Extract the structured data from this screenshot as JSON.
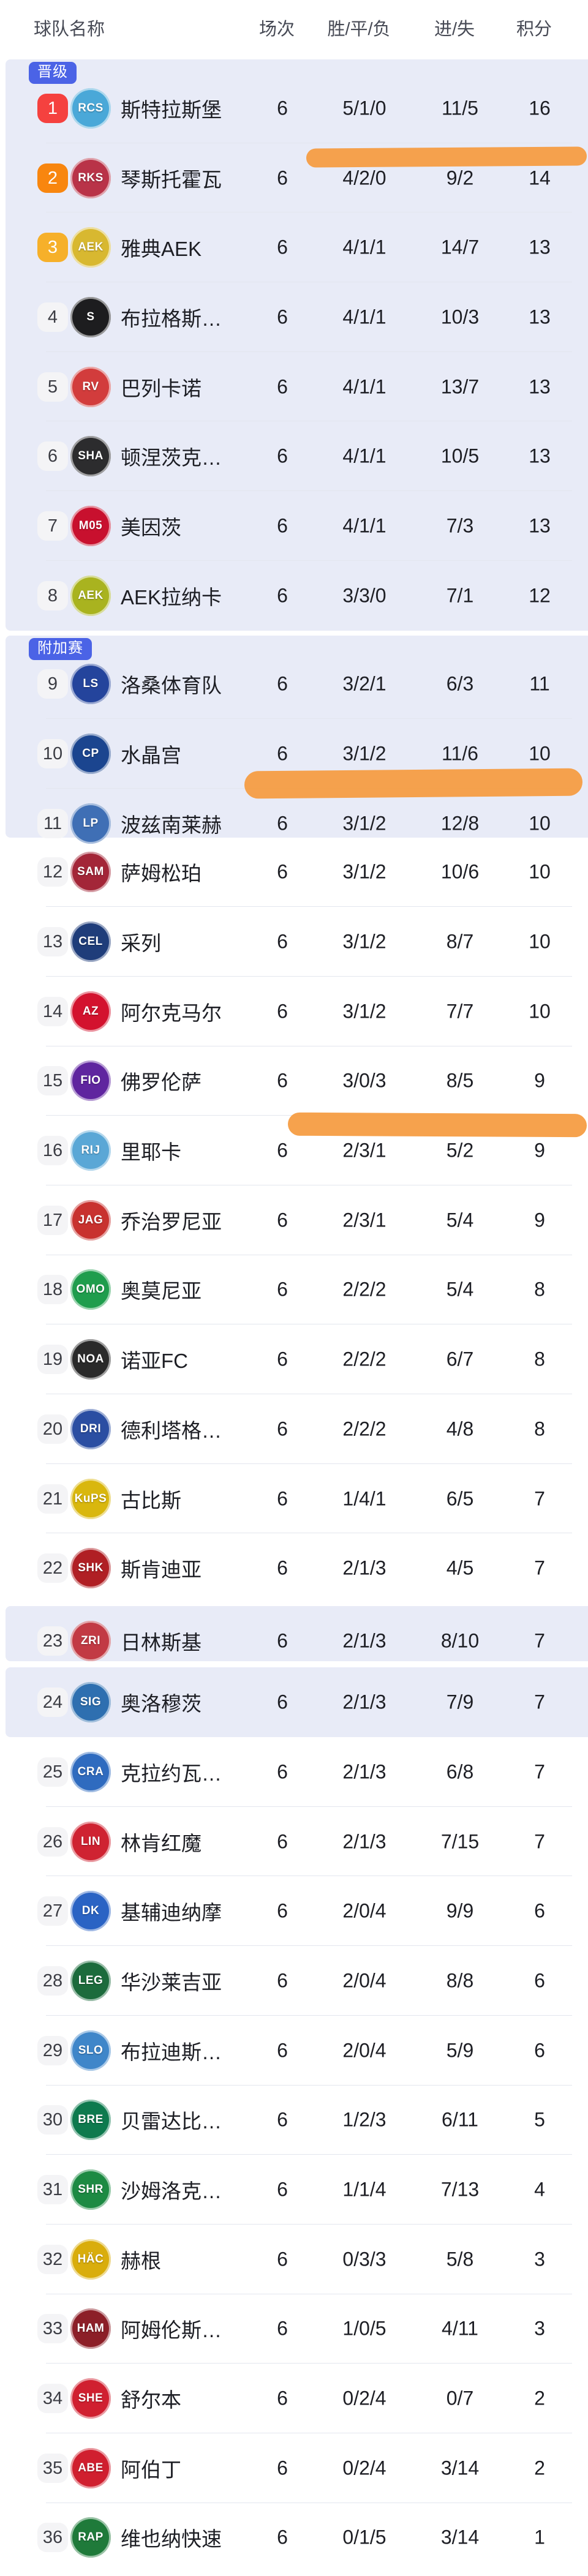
{
  "header": {
    "team": "球队名称",
    "played": "场次",
    "wdl": "胜/平/负",
    "goals": "进/失",
    "points": "积分"
  },
  "sections": [
    {
      "badge": "晋级"
    },
    {
      "badge": "附加赛"
    }
  ],
  "colors": {
    "section_bg": "#e8ebf7",
    "badge_blue": "#4b63e6",
    "rank1": "#f5413f",
    "rank2": "#f8860f",
    "rank3": "#f6b02a",
    "rank_default_bg": "#f4f4f6",
    "marker": "#f59b40"
  },
  "rows": [
    {
      "rank": "1",
      "name": "斯特拉斯堡",
      "crest_label": "RCS",
      "crest_color": "#4aa8d8",
      "played": "6",
      "wdl": "5/1/0",
      "goals": "11/5",
      "points": "16"
    },
    {
      "rank": "2",
      "name": "琴斯托霍瓦",
      "crest_label": "RKS",
      "crest_color": "#b93348",
      "played": "6",
      "wdl": "4/2/0",
      "goals": "9/2",
      "points": "14"
    },
    {
      "rank": "3",
      "name": "雅典AEK",
      "crest_label": "AEK",
      "crest_color": "#d8b830",
      "played": "6",
      "wdl": "4/1/1",
      "goals": "14/7",
      "points": "13"
    },
    {
      "rank": "4",
      "name": "布拉格斯…",
      "crest_label": "S",
      "crest_color": "#1d1d1f",
      "played": "6",
      "wdl": "4/1/1",
      "goals": "10/3",
      "points": "13"
    },
    {
      "rank": "5",
      "name": "巴列卡诺",
      "crest_label": "RV",
      "crest_color": "#d23c3c",
      "played": "6",
      "wdl": "4/1/1",
      "goals": "13/7",
      "points": "13"
    },
    {
      "rank": "6",
      "name": "顿涅茨克…",
      "crest_label": "SHA",
      "crest_color": "#2c2c2e",
      "played": "6",
      "wdl": "4/1/1",
      "goals": "10/5",
      "points": "13"
    },
    {
      "rank": "7",
      "name": "美因茨",
      "crest_label": "M05",
      "crest_color": "#c8102e",
      "played": "6",
      "wdl": "4/1/1",
      "goals": "7/3",
      "points": "13"
    },
    {
      "rank": "8",
      "name": "AEK拉纳卡",
      "crest_label": "AEK",
      "crest_color": "#a9b31f",
      "played": "6",
      "wdl": "3/3/0",
      "goals": "7/1",
      "points": "12"
    },
    {
      "rank": "9",
      "name": "洛桑体育队",
      "crest_label": "LS",
      "crest_color": "#24449c",
      "played": "6",
      "wdl": "3/2/1",
      "goals": "6/3",
      "points": "11"
    },
    {
      "rank": "10",
      "name": "水晶宫",
      "crest_label": "CP",
      "crest_color": "#1b458f",
      "played": "6",
      "wdl": "3/1/2",
      "goals": "11/6",
      "points": "10"
    },
    {
      "rank": "11",
      "name": "波兹南莱赫",
      "crest_label": "LP",
      "crest_color": "#3f6fb5",
      "played": "6",
      "wdl": "3/1/2",
      "goals": "12/8",
      "points": "10"
    },
    {
      "rank": "12",
      "name": "萨姆松珀",
      "crest_label": "SAM",
      "crest_color": "#a32638",
      "played": "6",
      "wdl": "3/1/2",
      "goals": "10/6",
      "points": "10"
    },
    {
      "rank": "13",
      "name": "采列",
      "crest_label": "CEL",
      "crest_color": "#1f3d7a",
      "played": "6",
      "wdl": "3/1/2",
      "goals": "8/7",
      "points": "10"
    },
    {
      "rank": "14",
      "name": "阿尔克马尔",
      "crest_label": "AZ",
      "crest_color": "#d3122e",
      "played": "6",
      "wdl": "3/1/2",
      "goals": "7/7",
      "points": "10"
    },
    {
      "rank": "15",
      "name": "佛罗伦萨",
      "crest_label": "FIO",
      "crest_color": "#5f259f",
      "played": "6",
      "wdl": "3/0/3",
      "goals": "8/5",
      "points": "9"
    },
    {
      "rank": "16",
      "name": "里耶卡",
      "crest_label": "RIJ",
      "crest_color": "#5aa7d6",
      "played": "6",
      "wdl": "2/3/1",
      "goals": "5/2",
      "points": "9"
    },
    {
      "rank": "17",
      "name": "乔治罗尼亚",
      "crest_label": "JAG",
      "crest_color": "#c8322f",
      "played": "6",
      "wdl": "2/3/1",
      "goals": "5/4",
      "points": "9"
    },
    {
      "rank": "18",
      "name": "奥莫尼亚",
      "crest_label": "OMO",
      "crest_color": "#1f9d4d",
      "played": "6",
      "wdl": "2/2/2",
      "goals": "5/4",
      "points": "8"
    },
    {
      "rank": "19",
      "name": "诺亚FC",
      "crest_label": "NOA",
      "crest_color": "#2a2a2a",
      "played": "6",
      "wdl": "2/2/2",
      "goals": "6/7",
      "points": "8"
    },
    {
      "rank": "20",
      "name": "德利塔格…",
      "crest_label": "DRI",
      "crest_color": "#2b4ea2",
      "played": "6",
      "wdl": "2/2/2",
      "goals": "4/8",
      "points": "8"
    },
    {
      "rank": "21",
      "name": "古比斯",
      "crest_label": "KuPS",
      "crest_color": "#d9b70e",
      "played": "6",
      "wdl": "1/4/1",
      "goals": "6/5",
      "points": "7"
    },
    {
      "rank": "22",
      "name": "斯肯迪亚",
      "crest_label": "SHK",
      "crest_color": "#b01f24",
      "played": "6",
      "wdl": "2/1/3",
      "goals": "4/5",
      "points": "7"
    },
    {
      "rank": "23",
      "name": "日林斯基",
      "crest_label": "ZRI",
      "crest_color": "#c23a44",
      "played": "6",
      "wdl": "2/1/3",
      "goals": "8/10",
      "points": "7"
    },
    {
      "rank": "24",
      "name": "奥洛穆茨",
      "crest_label": "SIG",
      "crest_color": "#2e6fb0",
      "played": "6",
      "wdl": "2/1/3",
      "goals": "7/9",
      "points": "7"
    },
    {
      "rank": "25",
      "name": "克拉约瓦…",
      "crest_label": "CRA",
      "crest_color": "#2f6bbf",
      "played": "6",
      "wdl": "2/1/3",
      "goals": "6/8",
      "points": "7"
    },
    {
      "rank": "26",
      "name": "林肯红魔",
      "crest_label": "LIN",
      "crest_color": "#cf2332",
      "played": "6",
      "wdl": "2/1/3",
      "goals": "7/15",
      "points": "7"
    },
    {
      "rank": "27",
      "name": "基辅迪纳摩",
      "crest_label": "DK",
      "crest_color": "#2a63c4",
      "played": "6",
      "wdl": "2/0/4",
      "goals": "9/9",
      "points": "6"
    },
    {
      "rank": "28",
      "name": "华沙莱吉亚",
      "crest_label": "LEG",
      "crest_color": "#1c6b3c",
      "played": "6",
      "wdl": "2/0/4",
      "goals": "8/8",
      "points": "6"
    },
    {
      "rank": "29",
      "name": "布拉迪斯…",
      "crest_label": "SLO",
      "crest_color": "#3f86c9",
      "played": "6",
      "wdl": "2/0/4",
      "goals": "5/9",
      "points": "6"
    },
    {
      "rank": "30",
      "name": "贝雷达比…",
      "crest_label": "BRE",
      "crest_color": "#0e7a4e",
      "played": "6",
      "wdl": "1/2/3",
      "goals": "6/11",
      "points": "5"
    },
    {
      "rank": "31",
      "name": "沙姆洛克…",
      "crest_label": "SHR",
      "crest_color": "#1d8a43",
      "played": "6",
      "wdl": "1/1/4",
      "goals": "7/13",
      "points": "4"
    },
    {
      "rank": "32",
      "name": "赫根",
      "crest_label": "HÄC",
      "crest_color": "#d9ad0c",
      "played": "6",
      "wdl": "0/3/3",
      "goals": "5/8",
      "points": "3"
    },
    {
      "rank": "33",
      "name": "阿姆伦斯…",
      "crest_label": "HAM",
      "crest_color": "#8c1f28",
      "played": "6",
      "wdl": "1/0/5",
      "goals": "4/11",
      "points": "3"
    },
    {
      "rank": "34",
      "name": "舒尔本",
      "crest_label": "SHE",
      "crest_color": "#d02030",
      "played": "6",
      "wdl": "0/2/4",
      "goals": "0/7",
      "points": "2"
    },
    {
      "rank": "35",
      "name": "阿伯丁",
      "crest_label": "ABE",
      "crest_color": "#d01f2f",
      "played": "6",
      "wdl": "0/2/4",
      "goals": "3/14",
      "points": "2"
    },
    {
      "rank": "36",
      "name": "维也纳快速",
      "crest_label": "RAP",
      "crest_color": "#1f7a3a",
      "played": "6",
      "wdl": "0/1/5",
      "goals": "3/14",
      "points": "1"
    }
  ],
  "annotations": {
    "highlighted_rows": [
      1,
      10,
      15
    ]
  }
}
